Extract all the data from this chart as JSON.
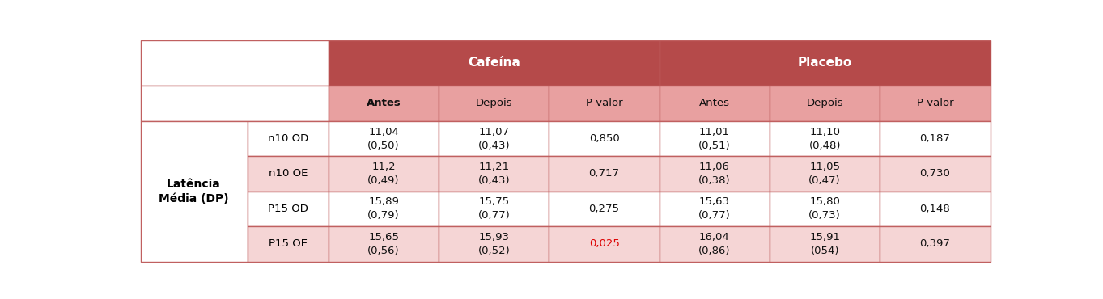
{
  "header_bg": "#b54a4a",
  "subheader_bg": "#e8a0a0",
  "row_bg_odd": "#ffffff",
  "row_bg_even": "#f5d5d5",
  "border_color": "#c06060",
  "header_text_color": "#ffffff",
  "subheader_text_color": "#111111",
  "data_text_color": "#111111",
  "highlight_color": "#dd0000",
  "col1_label": "Latência\nMédia (DP)",
  "group_headers": [
    "Cafeína",
    "Placebo"
  ],
  "subheaders": [
    "Antes",
    "Depois",
    "P valor",
    "Antes",
    "Depois",
    "P valor"
  ],
  "subheader_bold": [
    true,
    false,
    false,
    false,
    false,
    false
  ],
  "row_labels": [
    "n10 OD",
    "n10 OE",
    "P15 OD",
    "P15 OE"
  ],
  "row_data": [
    [
      "11,04\n(0,50)",
      "11,07\n(0,43)",
      "0,850",
      "11,01\n(0,51)",
      "11,10\n(0,48)",
      "0,187"
    ],
    [
      "11,2\n(0,49)",
      "11,21\n(0,43)",
      "0,717",
      "11,06\n(0,38)",
      "11,05\n(0,47)",
      "0,730"
    ],
    [
      "15,89\n(0,79)",
      "15,75\n(0,77)",
      "0,275",
      "15,63\n(0,77)",
      "15,80\n(0,73)",
      "0,148"
    ],
    [
      "15,65\n(0,56)",
      "15,93\n(0,52)",
      "0,025",
      "16,04\n(0,86)",
      "15,91\n(054)",
      "0,397"
    ]
  ],
  "p_highlight": [
    [
      false,
      false
    ],
    [
      false,
      false
    ],
    [
      false,
      false
    ],
    [
      true,
      false
    ]
  ],
  "figsize": [
    13.63,
    3.7
  ],
  "dpi": 100
}
